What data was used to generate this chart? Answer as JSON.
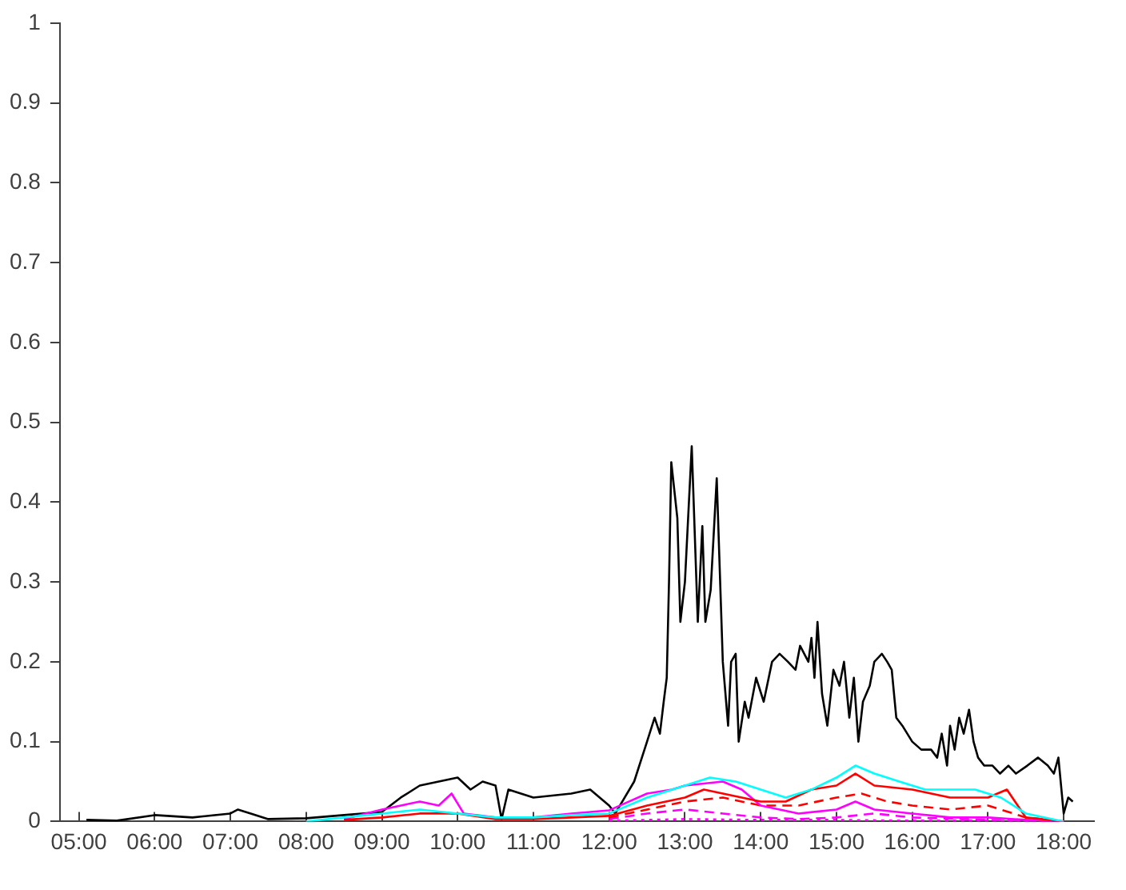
{
  "chart_data": {
    "type": "line",
    "xlim": [
      4.75,
      18.4
    ],
    "ylim": [
      0,
      1
    ],
    "xticks": [
      {
        "value": 5,
        "label": "05:00"
      },
      {
        "value": 6,
        "label": "06:00"
      },
      {
        "value": 7,
        "label": "07:00"
      },
      {
        "value": 8,
        "label": "08:00"
      },
      {
        "value": 9,
        "label": "09:00"
      },
      {
        "value": 10,
        "label": "10:00"
      },
      {
        "value": 11,
        "label": "11:00"
      },
      {
        "value": 12,
        "label": "12:00"
      },
      {
        "value": 13,
        "label": "13:00"
      },
      {
        "value": 14,
        "label": "14:00"
      },
      {
        "value": 15,
        "label": "15:00"
      },
      {
        "value": 16,
        "label": "16:00"
      },
      {
        "value": 17,
        "label": "17:00"
      },
      {
        "value": 18,
        "label": "18:00"
      }
    ],
    "yticks": [
      0,
      0.1,
      0.2,
      0.3,
      0.4,
      0.5,
      0.6,
      0.7,
      0.8,
      0.9,
      1
    ],
    "grid": false,
    "legend": false,
    "marker": "none",
    "series": [
      {
        "color": "#00ffff",
        "line_style": "solid",
        "x": [
          8,
          9,
          9.5,
          10,
          10.5,
          11,
          11.5,
          12,
          12.5,
          13,
          13.33,
          13.67,
          14,
          14.33,
          14.67,
          15,
          15.25,
          15.5,
          15.83,
          16.17,
          16.5,
          16.83,
          17.17,
          17.5,
          17.75,
          18
        ],
        "values": [
          0,
          0.01,
          0.015,
          0.01,
          0.005,
          0.005,
          0.008,
          0.01,
          0.03,
          0.045,
          0.055,
          0.05,
          0.04,
          0.03,
          0.04,
          0.055,
          0.07,
          0.06,
          0.05,
          0.04,
          0.04,
          0.04,
          0.03,
          0.01,
          0.005,
          0
        ]
      },
      {
        "color": "#ff0000",
        "line_style": "solid",
        "x": [
          8.5,
          9,
          9.5,
          10,
          10.5,
          11,
          11.5,
          12,
          12.5,
          13,
          13.25,
          13.5,
          14,
          14.33,
          14.67,
          15,
          15.25,
          15.5,
          16,
          16.5,
          17,
          17.25,
          17.5,
          18
        ],
        "values": [
          0.002,
          0.005,
          0.01,
          0.01,
          0.003,
          0.003,
          0.005,
          0.007,
          0.02,
          0.03,
          0.04,
          0.035,
          0.025,
          0.025,
          0.04,
          0.045,
          0.06,
          0.045,
          0.04,
          0.03,
          0.03,
          0.04,
          0.005,
          0
        ]
      },
      {
        "color": "#ff00ff",
        "line_style": "solid",
        "x": [
          8.5,
          9,
          9.25,
          9.5,
          9.75,
          9.92,
          10.08,
          10.5,
          11,
          11.5,
          12,
          12.5,
          12.83,
          13,
          13.5,
          13.75,
          14,
          14.5,
          15,
          15.25,
          15.5,
          16,
          16.5,
          17,
          17.5,
          18
        ],
        "values": [
          0.003,
          0.015,
          0.02,
          0.025,
          0.02,
          0.035,
          0.01,
          0.005,
          0.005,
          0.01,
          0.014,
          0.035,
          0.04,
          0.045,
          0.05,
          0.04,
          0.02,
          0.01,
          0.015,
          0.025,
          0.015,
          0.01,
          0.005,
          0.005,
          0.002,
          0
        ]
      },
      {
        "color": "#ff0000",
        "line_style": "dashed",
        "x": [
          12,
          12.5,
          13,
          13.5,
          14,
          14.5,
          15,
          15.33,
          15.67,
          16,
          16.5,
          17,
          17.5,
          18
        ],
        "values": [
          0.005,
          0.015,
          0.025,
          0.03,
          0.02,
          0.02,
          0.03,
          0.035,
          0.025,
          0.02,
          0.015,
          0.02,
          0.005,
          0
        ]
      },
      {
        "color": "#ff00ff",
        "line_style": "dashed",
        "x": [
          12,
          12.5,
          13,
          13.5,
          14,
          14.5,
          15,
          15.5,
          16,
          17,
          18
        ],
        "values": [
          0.003,
          0.01,
          0.015,
          0.01,
          0.005,
          0.003,
          0.005,
          0.01,
          0.005,
          0.002,
          0
        ]
      },
      {
        "color": "#ff00ff",
        "line_style": "dotted",
        "x": [
          12,
          13,
          14,
          15,
          16,
          17,
          18
        ],
        "values": [
          0.001,
          0.003,
          0.002,
          0.002,
          0.001,
          0.001,
          0
        ]
      },
      {
        "color": "#000000",
        "line_style": "solid",
        "x": [
          5.1,
          5.5,
          6,
          6.5,
          7,
          7.1,
          7.5,
          8,
          8.5,
          9,
          9.25,
          9.5,
          9.75,
          10,
          10.17,
          10.33,
          10.5,
          10.58,
          10.67,
          11,
          11.5,
          11.75,
          12,
          12.08,
          12.33,
          12.5,
          12.6,
          12.67,
          12.72,
          12.76,
          12.79,
          12.82,
          12.9,
          12.94,
          13,
          13.09,
          13.17,
          13.23,
          13.27,
          13.34,
          13.42,
          13.5,
          13.57,
          13.61,
          13.67,
          13.71,
          13.79,
          13.84,
          13.94,
          14.04,
          14.15,
          14.25,
          14.36,
          14.46,
          14.52,
          14.63,
          14.67,
          14.71,
          14.75,
          14.81,
          14.88,
          14.96,
          15.04,
          15.1,
          15.17,
          15.23,
          15.29,
          15.35,
          15.44,
          15.5,
          15.6,
          15.67,
          15.73,
          15.79,
          15.87,
          16,
          16.12,
          16.25,
          16.33,
          16.39,
          16.46,
          16.5,
          16.56,
          16.62,
          16.68,
          16.75,
          16.81,
          16.87,
          16.95,
          17.06,
          17.16,
          17.27,
          17.37,
          17.52,
          17.66,
          17.79,
          17.87,
          17.93,
          18,
          18.06,
          18.12
        ],
        "values": [
          0.002,
          0.001,
          0.008,
          0.005,
          0.01,
          0.015,
          0.003,
          0.004,
          0.008,
          0.012,
          0.03,
          0.045,
          0.05,
          0.055,
          0.04,
          0.05,
          0.045,
          0.003,
          0.04,
          0.03,
          0.035,
          0.04,
          0.02,
          0.01,
          0.05,
          0.1,
          0.13,
          0.11,
          0.15,
          0.18,
          0.3,
          0.45,
          0.38,
          0.25,
          0.3,
          0.47,
          0.25,
          0.37,
          0.25,
          0.29,
          0.43,
          0.2,
          0.12,
          0.2,
          0.21,
          0.1,
          0.15,
          0.13,
          0.18,
          0.15,
          0.2,
          0.21,
          0.2,
          0.19,
          0.22,
          0.2,
          0.23,
          0.18,
          0.25,
          0.16,
          0.12,
          0.19,
          0.17,
          0.2,
          0.13,
          0.18,
          0.1,
          0.15,
          0.17,
          0.2,
          0.21,
          0.2,
          0.19,
          0.13,
          0.12,
          0.1,
          0.09,
          0.09,
          0.08,
          0.11,
          0.07,
          0.12,
          0.09,
          0.13,
          0.11,
          0.14,
          0.1,
          0.08,
          0.07,
          0.07,
          0.06,
          0.07,
          0.06,
          0.07,
          0.08,
          0.07,
          0.06,
          0.08,
          0.01,
          0.03,
          0.025
        ]
      }
    ]
  }
}
